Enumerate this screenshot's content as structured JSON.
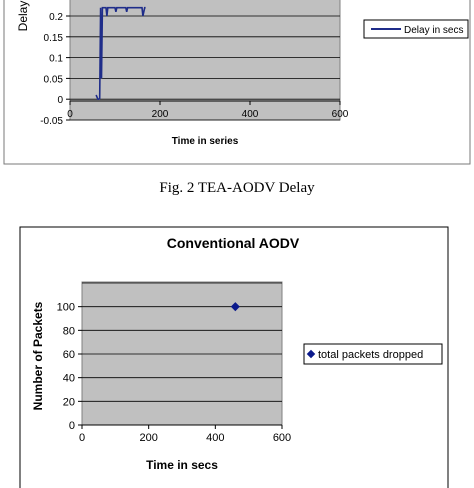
{
  "caption_fig1": "Fig. 2 TEA-AODV Delay",
  "chart_data": [
    {
      "type": "line",
      "title": "",
      "xlabel": "Time in series",
      "ylabel": "Delay",
      "xlim": [
        0,
        600
      ],
      "ylim": [
        -0.05,
        0.2
      ],
      "x_ticks": [
        "0",
        "200",
        "400",
        "600"
      ],
      "y_ticks": [
        "-0.05",
        "0",
        "0.05",
        "0.1",
        "0.15",
        "0.2"
      ],
      "grid": "horizontal",
      "legend_position": "right",
      "series": [
        {
          "name": "Delay in secs",
          "color": "#1f2d8a",
          "x": [
            58,
            60,
            62,
            64,
            66,
            68,
            70,
            72,
            80,
            82,
            84,
            90,
            100,
            102,
            104,
            110,
            124,
            126,
            128,
            140,
            160,
            162,
            164,
            166,
            168
          ],
          "y": [
            0.01,
            0.005,
            0.0,
            0.0,
            0.002,
            0.22,
            0.05,
            0.22,
            0.22,
            0.2,
            0.22,
            0.22,
            0.22,
            0.21,
            0.22,
            0.22,
            0.22,
            0.21,
            0.22,
            0.22,
            0.22,
            0.2,
            0.21,
            0.22,
            0.22
          ]
        }
      ]
    },
    {
      "type": "scatter",
      "title": "Conventional AODV",
      "xlabel": "Time in secs",
      "ylabel": "Number of Packets",
      "xlim": [
        0,
        600
      ],
      "ylim": [
        0,
        120
      ],
      "x_ticks": [
        "0",
        "200",
        "400",
        "600"
      ],
      "y_ticks": [
        "0",
        "20",
        "40",
        "60",
        "80",
        "100",
        "120"
      ],
      "grid": "horizontal",
      "legend_position": "right",
      "series": [
        {
          "name": "total packets dropped",
          "color": "#0b1a8c",
          "x": [
            460
          ],
          "y": [
            100
          ]
        }
      ]
    }
  ]
}
